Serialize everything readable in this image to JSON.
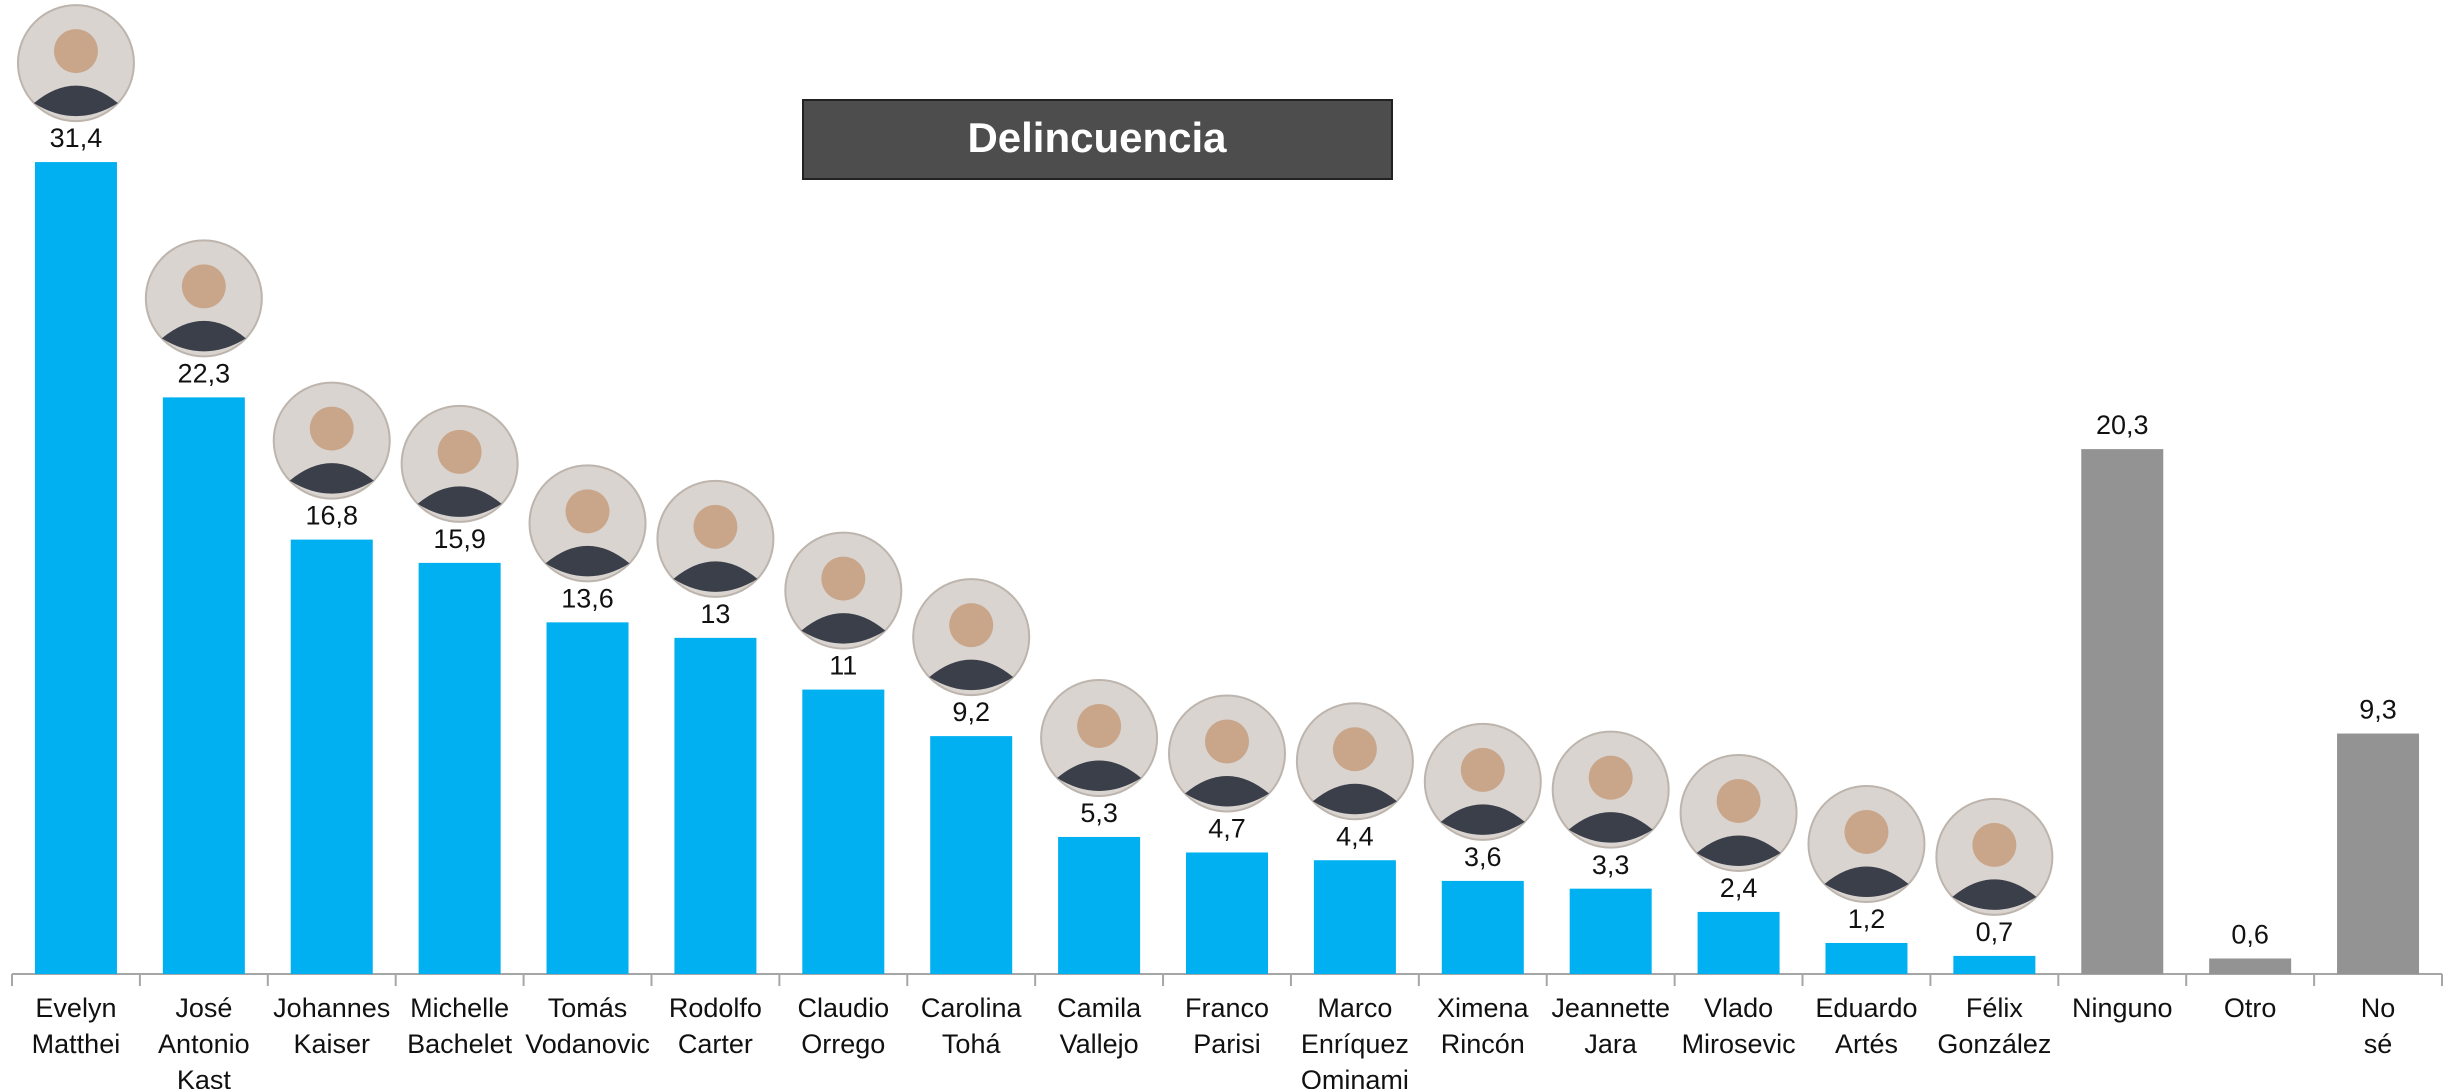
{
  "chart_data": {
    "type": "bar",
    "title": "Delincuencia",
    "categories": [
      "Evelyn Matthei",
      "José Antonio Kast",
      "Johannes Kaiser",
      "Michelle Bachelet",
      "Tomás Vodanovic",
      "Rodolfo Carter",
      "Claudio Orrego",
      "Carolina Tohá",
      "Camila Vallejo",
      "Franco Parisi",
      "Marco Enríquez Ominami",
      "Ximena Rincón",
      "Jeannette Jara",
      "Vlado Mirosevic",
      "Eduardo Artés",
      "Félix González",
      "Ninguno",
      "Otro",
      "No sé"
    ],
    "values": [
      31.4,
      22.3,
      16.8,
      15.9,
      13.6,
      13,
      11,
      9.2,
      5.3,
      4.7,
      4.4,
      3.6,
      3.3,
      2.4,
      1.2,
      0.7,
      20.3,
      0.6,
      9.3
    ],
    "value_labels": [
      "31,4",
      "22,3",
      "16,8",
      "15,9",
      "13,6",
      "13",
      "11",
      "9,2",
      "5,3",
      "4,7",
      "4,4",
      "3,6",
      "3,3",
      "2,4",
      "1,2",
      "0,7",
      "20,3",
      "0,6",
      "9,3"
    ],
    "colors": [
      "#00b0f0",
      "#00b0f0",
      "#00b0f0",
      "#00b0f0",
      "#00b0f0",
      "#00b0f0",
      "#00b0f0",
      "#00b0f0",
      "#00b0f0",
      "#00b0f0",
      "#00b0f0",
      "#00b0f0",
      "#00b0f0",
      "#00b0f0",
      "#00b0f0",
      "#00b0f0",
      "#939393",
      "#939393",
      "#939393"
    ],
    "ylim": [
      0,
      35
    ]
  }
}
